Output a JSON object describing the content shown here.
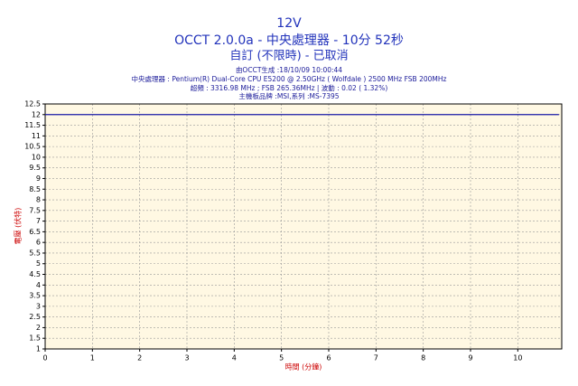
{
  "chart_data": {
    "type": "line",
    "title": "12V",
    "subtitle": "OCCT 2.0.0a - 中央處理器 - 10分 52秒",
    "subtitle2": "自訂 (不限時) - 已取消",
    "info": [
      "由OCCT生成 :18/10/09 10:00:44",
      "中央處理器 : Pentium(R) Dual-Core CPU E5200 @ 2.50GHz ( Wolfdale ) 2500 MHz FSB 200MHz",
      "超頻 : 3316.98 MHz ; FSB 265.36MHz | 波動 : 0.02 ( 1.32%)",
      "主機板品牌 :MSI,系列 :MS-7395"
    ],
    "x_label": "時間 (分鐘)",
    "y_label": "電壓 (伏特)",
    "x": [
      0,
      10.87
    ],
    "series": [
      {
        "name": "12V",
        "color": "#1a1aa6",
        "values": [
          12,
          12
        ]
      }
    ],
    "xlim": [
      0,
      10.93
    ],
    "xticks": [
      0,
      1,
      2,
      3,
      4,
      5,
      6,
      7,
      8,
      9,
      10
    ],
    "ylim": [
      1,
      12.5
    ],
    "yticks": [
      1,
      1.5,
      2,
      2.5,
      3,
      3.5,
      4,
      4.5,
      5,
      5.5,
      6,
      6.5,
      7,
      7.5,
      8,
      8.5,
      9,
      9.5,
      10,
      10.5,
      11,
      11.5,
      12,
      12.5
    ],
    "grid": true
  }
}
